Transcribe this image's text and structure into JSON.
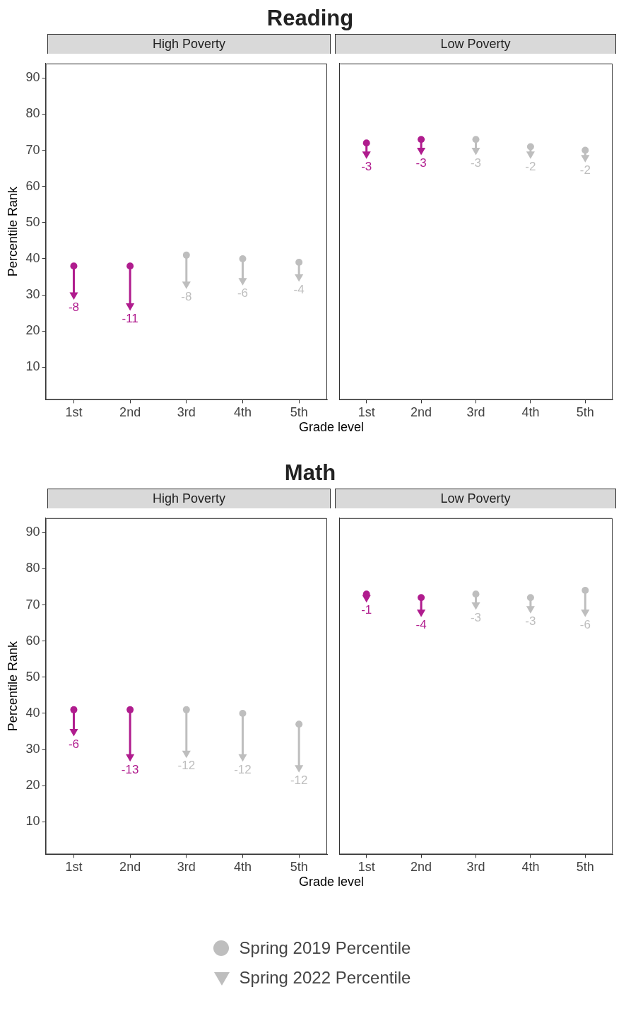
{
  "chart_data": [
    {
      "type": "scatter",
      "title": "Reading",
      "subtitle": "High Poverty",
      "xlabel": "Grade level",
      "ylabel": "Percentile Rank",
      "categories": [
        "1st",
        "2nd",
        "3rd",
        "4th",
        "5th"
      ],
      "ylim": [
        1,
        94
      ],
      "yticks": [
        10,
        20,
        30,
        40,
        50,
        60,
        70,
        80,
        90
      ],
      "grid": false,
      "series": [
        {
          "marker": "circle",
          "colors": [
            "#b01c8e",
            "#b01c8e",
            "#bebebe",
            "#bebebe",
            "#bebebe"
          ],
          "values": [
            38,
            38,
            41,
            40,
            39
          ]
        },
        {
          "marker": "triangle",
          "colors": [
            "#b01c8e",
            "#b01c8e",
            "#bebebe",
            "#bebebe",
            "#bebebe"
          ],
          "values": [
            30,
            27,
            33,
            34,
            35
          ]
        }
      ],
      "annotations": [
        {
          "text": "-8",
          "x": "1st",
          "y": 30
        },
        {
          "text": "-11",
          "x": "2nd",
          "y": 27
        },
        {
          "text": "-8",
          "x": "3rd",
          "y": 33
        },
        {
          "text": "-6",
          "x": "4th",
          "y": 34
        },
        {
          "text": "-4",
          "x": "5th",
          "y": 35
        }
      ]
    },
    {
      "type": "scatter",
      "subtitle": "Low Poverty",
      "categories": [
        "1st",
        "2nd",
        "3rd",
        "4th",
        "5th"
      ],
      "ylim": [
        1,
        94
      ],
      "yticks": [
        10,
        20,
        30,
        40,
        50,
        60,
        70,
        80,
        90
      ],
      "grid": false,
      "tick_labels": "x",
      "series": [
        {
          "marker": "circle",
          "colors": [
            "#b01c8e",
            "#b01c8e",
            "#bebebe",
            "#bebebe",
            "#bebebe"
          ],
          "values": [
            72,
            73,
            73,
            71,
            70
          ]
        },
        {
          "marker": "triangle",
          "colors": [
            "#b01c8e",
            "#b01c8e",
            "#bebebe",
            "#bebebe",
            "#bebebe"
          ],
          "values": [
            69,
            70,
            70,
            69,
            68
          ]
        }
      ],
      "annotations": [
        {
          "text": "-3",
          "x": "1st",
          "y": 69
        },
        {
          "text": "-3",
          "x": "2nd",
          "y": 70
        },
        {
          "text": "-3",
          "x": "3rd",
          "y": 70
        },
        {
          "text": "-2",
          "x": "4th",
          "y": 69
        },
        {
          "text": "-2",
          "x": "5th",
          "y": 68
        }
      ]
    },
    {
      "type": "scatter",
      "title": "Math",
      "subtitle": "High Poverty",
      "xlabel": "Grade level",
      "ylabel": "Percentile Rank",
      "categories": [
        "1st",
        "2nd",
        "3rd",
        "4th",
        "5th"
      ],
      "ylim": [
        1,
        94
      ],
      "yticks": [
        10,
        20,
        30,
        40,
        50,
        60,
        70,
        80,
        90
      ],
      "grid": false,
      "series": [
        {
          "marker": "circle",
          "colors": [
            "#b01c8e",
            "#b01c8e",
            "#bebebe",
            "#bebebe",
            "#bebebe"
          ],
          "values": [
            41,
            41,
            41,
            40,
            37
          ]
        },
        {
          "marker": "triangle",
          "colors": [
            "#b01c8e",
            "#b01c8e",
            "#bebebe",
            "#bebebe",
            "#bebebe"
          ],
          "values": [
            35,
            28,
            29,
            28,
            25
          ]
        }
      ],
      "annotations": [
        {
          "text": "-6",
          "x": "1st",
          "y": 35
        },
        {
          "text": "-13",
          "x": "2nd",
          "y": 28
        },
        {
          "text": "-12",
          "x": "3rd",
          "y": 29
        },
        {
          "text": "-12",
          "x": "4th",
          "y": 28
        },
        {
          "text": "-12",
          "x": "5th",
          "y": 25
        }
      ]
    },
    {
      "type": "scatter",
      "subtitle": "Low Poverty",
      "categories": [
        "1st",
        "2nd",
        "3rd",
        "4th",
        "5th"
      ],
      "ylim": [
        1,
        94
      ],
      "yticks": [
        10,
        20,
        30,
        40,
        50,
        60,
        70,
        80,
        90
      ],
      "grid": false,
      "tick_labels": "x",
      "legend": "bottom",
      "series": [
        {
          "name": "Spring 2019 Percentile",
          "marker": "circle",
          "colors": [
            "#b01c8e",
            "#b01c8e",
            "#bebebe",
            "#bebebe",
            "#bebebe"
          ],
          "values": [
            73,
            72,
            73,
            72,
            74
          ]
        },
        {
          "name": "Spring 2022 Percentile",
          "marker": "triangle",
          "colors": [
            "#b01c8e",
            "#b01c8e",
            "#bebebe",
            "#bebebe",
            "#bebebe"
          ],
          "values": [
            72,
            68,
            70,
            69,
            68
          ]
        }
      ],
      "annotations": [
        {
          "text": "-1",
          "x": "1st",
          "y": 72
        },
        {
          "text": "-4",
          "x": "2nd",
          "y": 68
        },
        {
          "text": "-3",
          "x": "3rd",
          "y": 70
        },
        {
          "text": "-3",
          "x": "4th",
          "y": 69
        },
        {
          "text": "-6",
          "x": "5th",
          "y": 68
        }
      ]
    }
  ]
}
